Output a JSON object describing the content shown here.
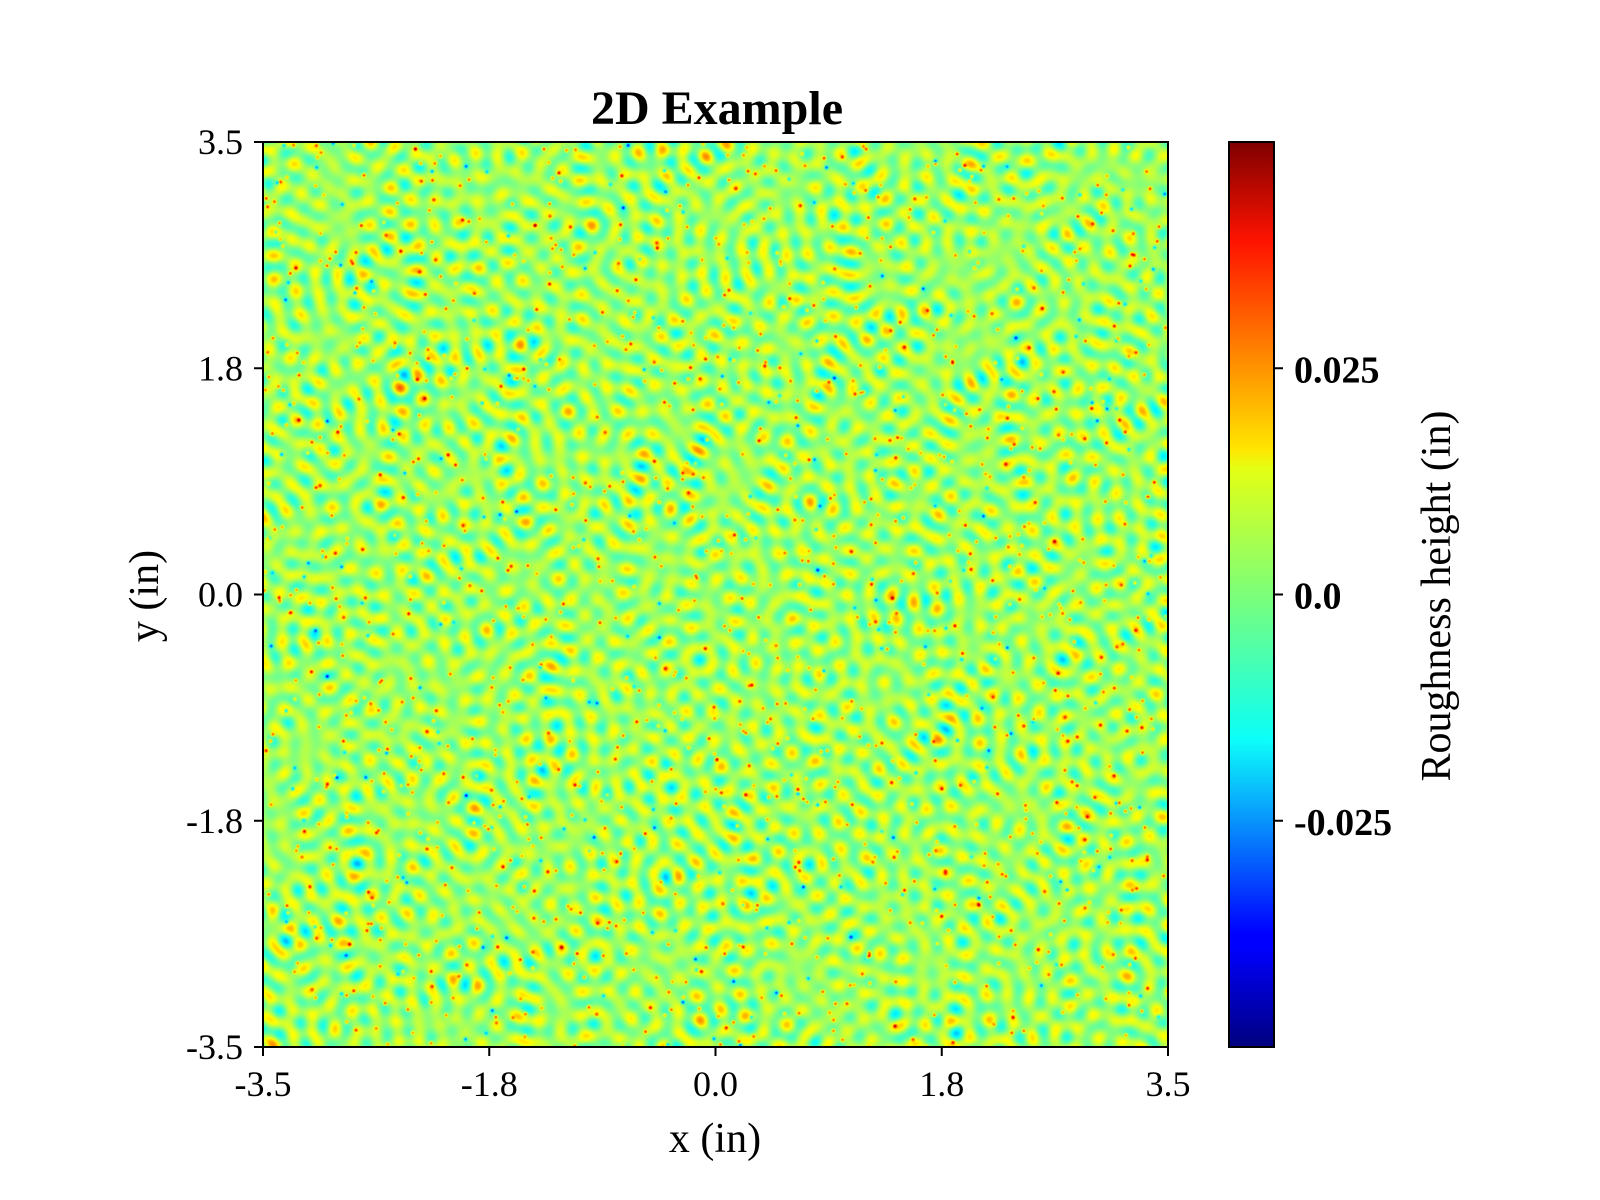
{
  "chart_data": {
    "type": "heatmap",
    "title": "2D Example",
    "xlabel": "x (in)",
    "ylabel": "y (in)",
    "xlim": [
      -3.5,
      3.5
    ],
    "ylim": [
      -3.5,
      3.5
    ],
    "xticks": [
      {
        "value": -3.5,
        "label": "-3.5"
      },
      {
        "value": -1.75,
        "label": "-1.8"
      },
      {
        "value": 0.0,
        "label": "0.0"
      },
      {
        "value": 1.75,
        "label": "1.8"
      },
      {
        "value": 3.5,
        "label": "3.5"
      }
    ],
    "yticks": [
      {
        "value": -3.5,
        "label": "-3.5"
      },
      {
        "value": -1.75,
        "label": "-1.8"
      },
      {
        "value": 0.0,
        "label": "0.0"
      },
      {
        "value": 1.75,
        "label": "1.8"
      },
      {
        "value": 3.5,
        "label": "3.5"
      }
    ],
    "grid": false,
    "colormap": "jet",
    "colorbar": {
      "label": "Roughness height (in)",
      "range": [
        -0.05,
        0.05
      ],
      "ticks": [
        {
          "value": 0.025,
          "label": "0.025"
        },
        {
          "value": 0.0,
          "label": "0.0"
        },
        {
          "value": -0.025,
          "label": "-0.025"
        }
      ]
    },
    "field_description_values": {
      "mean": 0.0,
      "typical_range": [
        -0.01,
        0.015
      ],
      "extreme_range": [
        -0.045,
        0.045
      ]
    }
  }
}
